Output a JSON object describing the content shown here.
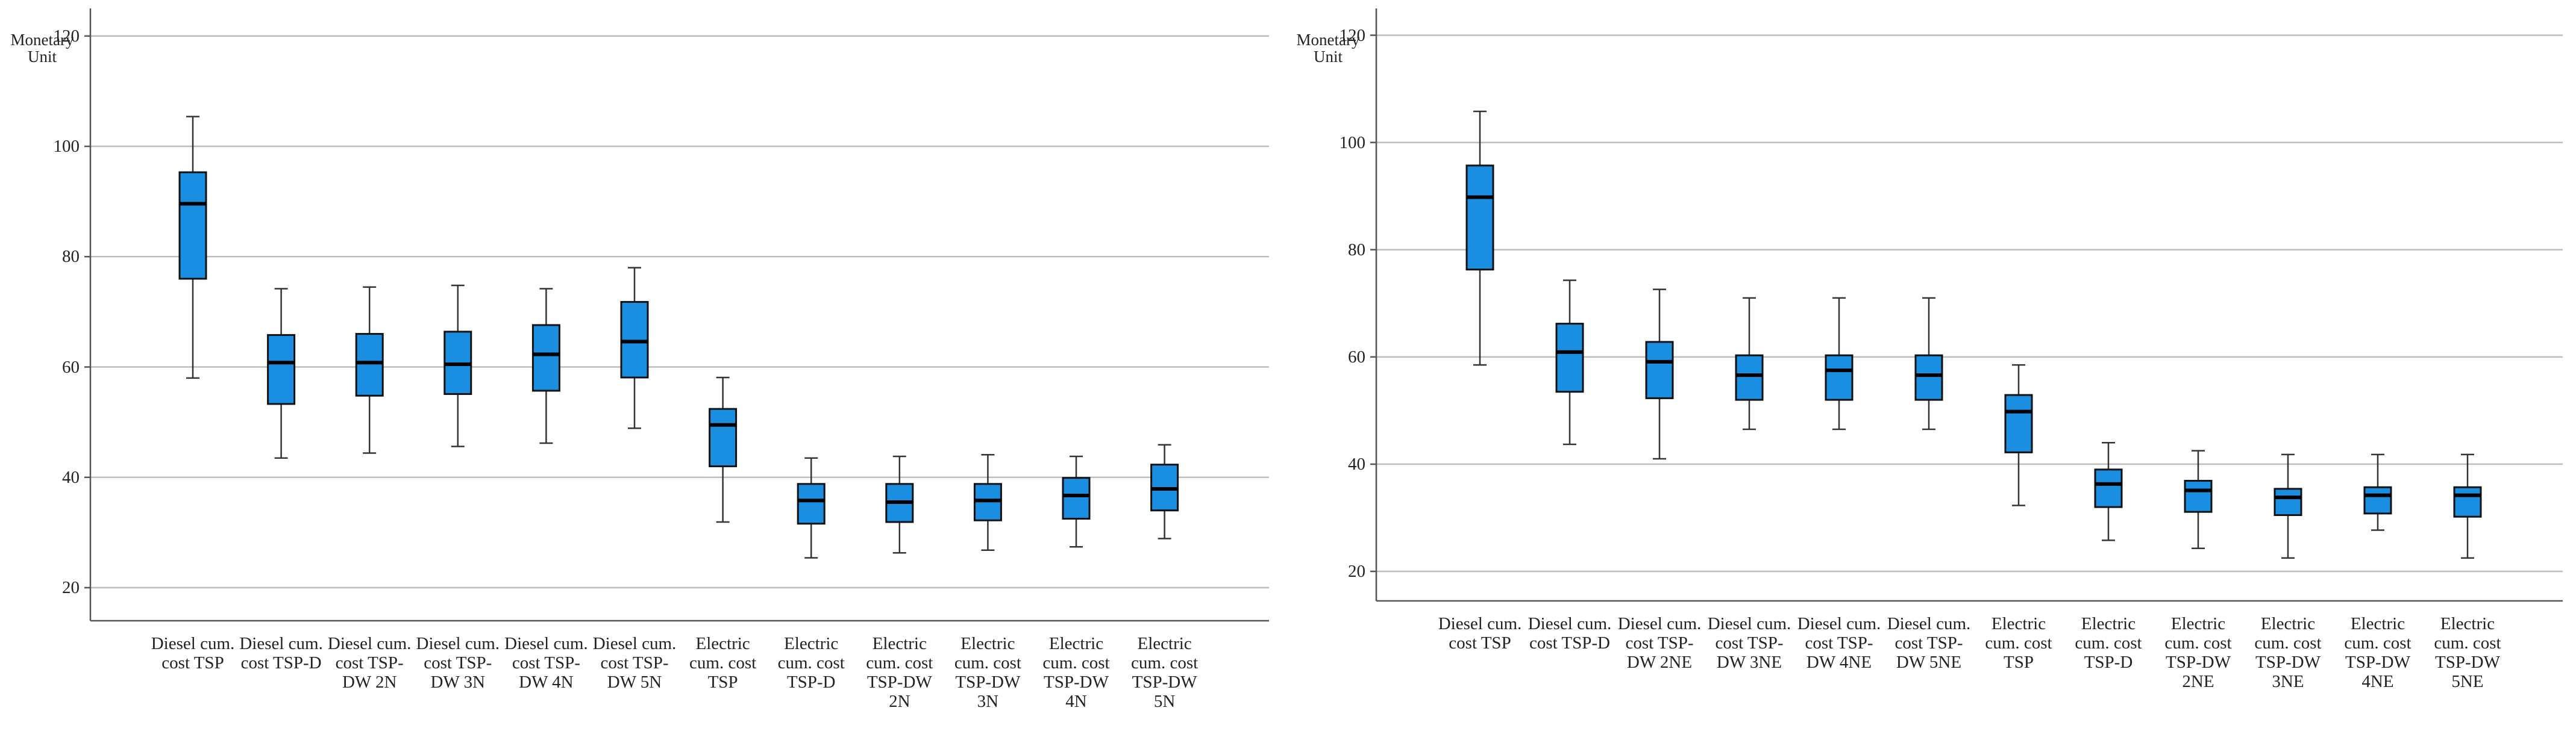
{
  "chart_data": [
    {
      "type": "box",
      "y_label": "Monetary Unit",
      "categories": [
        "Diesel cum. cost TSP",
        "Diesel cum. cost TSP-D",
        "Diesel cum. cost TSP-DW 2N",
        "Diesel cum. cost TSP-DW 3N",
        "Diesel cum. cost TSP-DW 4N",
        "Diesel cum. cost TSP-DW 5N",
        "Electric cum. cost TSP",
        "Electric cum. cost TSP-D",
        "Electric cum. cost TSP-DW 2N",
        "Electric cum. cost TSP-DW 3N",
        "Electric cum. cost TSP-DW 4N",
        "Electric cum. cost TSP-DW 5N"
      ],
      "low": [
        58,
        43.5,
        44.4,
        45.6,
        46.2,
        48.9,
        31.9,
        25.4,
        26.3,
        26.8,
        27.4,
        28.9
      ],
      "q1": [
        76,
        53.3,
        54.8,
        55.1,
        55.7,
        58.1,
        42,
        31.6,
        31.9,
        32.2,
        32.5,
        34
      ],
      "median": [
        89.6,
        60.8,
        60.8,
        60.5,
        62.3,
        64.6,
        49.5,
        35.8,
        35.5,
        35.8,
        36.7,
        37.9
      ],
      "q3": [
        95.3,
        65.8,
        66,
        66.4,
        67.6,
        71.8,
        52.4,
        38.8,
        38.8,
        38.8,
        39.9,
        42.3
      ],
      "high": [
        105.4,
        74.2,
        74.5,
        74.8,
        74.2,
        78,
        58.1,
        43.5,
        43.8,
        44.1,
        43.8,
        45.9
      ],
      "color": "#1a8ee0",
      "ylim": [
        14,
        125
      ],
      "yticks": [
        20,
        40,
        60,
        80,
        100,
        120
      ],
      "grid": true
    },
    {
      "type": "box",
      "y_label": "Monetary Unit",
      "categories": [
        "Diesel cum. cost TSP",
        "Diesel cum. cost TSP-D",
        "Diesel cum. cost TSP-DW 2NE",
        "Diesel cum. cost TSP-DW 3NE",
        "Diesel cum. cost TSP-DW 4NE",
        "Diesel cum. cost TSP-DW 5NE",
        "Electric cum. cost TSP",
        "Electric cum. cost TSP-D",
        "Electric cum. cost TSP-DW 2NE",
        "Electric cum. cost TSP-DW 3NE",
        "Electric cum. cost TSP-DW 4NE",
        "Electric cum. cost TSP-DW 5NE"
      ],
      "low": [
        58.5,
        43.7,
        41,
        46.5,
        46.5,
        46.5,
        32.3,
        25.8,
        24.3,
        22.5,
        27.7,
        22.5
      ],
      "q1": [
        76.3,
        53.5,
        52.3,
        52,
        52,
        52,
        42.2,
        32,
        31.1,
        30.5,
        30.8,
        30.2
      ],
      "median": [
        89.8,
        60.9,
        59.1,
        56.6,
        57.5,
        56.6,
        49.8,
        36.3,
        35.1,
        33.8,
        34.2,
        34.2
      ],
      "q3": [
        95.7,
        66.2,
        62.8,
        60.3,
        60.3,
        60.3,
        52.9,
        39,
        36.9,
        35.4,
        35.7,
        35.7
      ],
      "high": [
        105.8,
        74.3,
        72.6,
        71,
        71,
        71,
        58.5,
        44,
        42.5,
        41.8,
        41.8,
        41.8
      ],
      "color": "#1a8ee0",
      "ylim": [
        14.5,
        125
      ],
      "yticks": [
        20,
        40,
        60,
        80,
        100,
        120
      ],
      "grid": true
    }
  ]
}
